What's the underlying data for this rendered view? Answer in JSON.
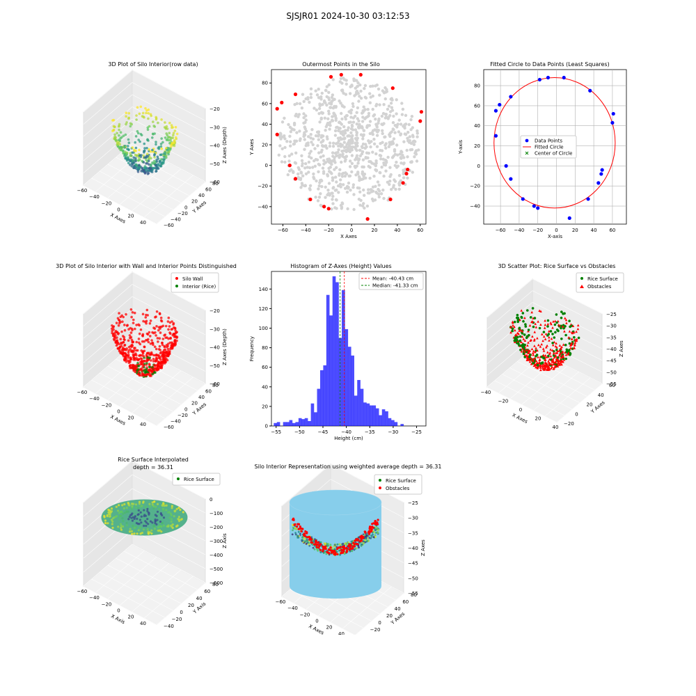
{
  "suptitle": "SJSJR01 2024-10-30 03:12:53",
  "chart_data": [
    {
      "type": "scatter",
      "projection": "3d",
      "title": "3D Plot of Silo Interior(row data)",
      "xlabel": "X Axes",
      "ylabel": "Y Axes",
      "zlabel": "Z Axes (Depth)",
      "xticks": [
        "−60",
        "−40",
        "−20",
        "0",
        "20",
        "40",
        "60"
      ],
      "yticks": [
        "−60",
        "−40",
        "−20",
        "0",
        "20",
        "40",
        "60",
        "80"
      ],
      "zticks": [
        "−20",
        "−30",
        "−40",
        "−50",
        "−60"
      ],
      "colormap": "viridis"
    },
    {
      "type": "scatter",
      "title": "Outermost Points in the Silo",
      "xlabel": "X Axes",
      "ylabel": "Y Axes",
      "xlim": [
        -70,
        65
      ],
      "ylim": [
        -57,
        93
      ],
      "xticks": [
        "−60",
        "−40",
        "−20",
        "0",
        "20",
        "40",
        "60"
      ],
      "yticks": [
        "−40",
        "−20",
        "0",
        "20",
        "40",
        "60",
        "80"
      ],
      "xticks_values": [
        -60,
        -40,
        -20,
        0,
        20,
        40,
        60
      ],
      "yticks_values": [
        -40,
        -20,
        0,
        20,
        40,
        60,
        80
      ],
      "colors": {
        "interior": "#d3d3d3",
        "outer": "#ff0000"
      },
      "outer_points": [
        [
          -65,
          55
        ],
        [
          -61,
          61
        ],
        [
          -49,
          69
        ],
        [
          -18,
          86
        ],
        [
          -9,
          88
        ],
        [
          8,
          88
        ],
        [
          36,
          75
        ],
        [
          61,
          52
        ],
        [
          60,
          43
        ],
        [
          -65,
          30
        ],
        [
          -54,
          0
        ],
        [
          -49,
          -13
        ],
        [
          -36,
          -33
        ],
        [
          -24,
          -40
        ],
        [
          -20,
          -42
        ],
        [
          14,
          -52
        ],
        [
          34,
          -33
        ],
        [
          45,
          -17
        ],
        [
          48,
          -8
        ],
        [
          49,
          -4
        ]
      ]
    },
    {
      "type": "scatter",
      "title": "Fitted Circle to Data Points (Least Squares)",
      "xlabel": "X-axis",
      "ylabel": "Y-axis",
      "xlim": [
        -78,
        75
      ],
      "ylim": [
        -58,
        96
      ],
      "xticks": [
        "−60",
        "−40",
        "−20",
        "0",
        "20",
        "40",
        "60"
      ],
      "yticks": [
        "−40",
        "−20",
        "0",
        "20",
        "40",
        "60",
        "80"
      ],
      "xticks_values": [
        -60,
        -40,
        -20,
        0,
        20,
        40,
        60
      ],
      "yticks_values": [
        -40,
        -20,
        0,
        20,
        40,
        60,
        80
      ],
      "grid": true,
      "legend": [
        "Data Points",
        "Fitted Circle",
        "Center of Circle"
      ],
      "legend_position": "center",
      "colors": {
        "points": "#0000ff",
        "circle": "#ff0000",
        "center": "#008000"
      },
      "points": [
        [
          -65,
          55
        ],
        [
          -61,
          61
        ],
        [
          -49,
          69
        ],
        [
          -18,
          86
        ],
        [
          -9,
          88
        ],
        [
          8,
          88
        ],
        [
          36,
          75
        ],
        [
          61,
          52
        ],
        [
          60,
          43
        ],
        [
          -65,
          30
        ],
        [
          -54,
          0
        ],
        [
          -49,
          -13
        ],
        [
          -36,
          -33
        ],
        [
          -24,
          -40
        ],
        [
          -20,
          -42
        ],
        [
          14,
          -52
        ],
        [
          34,
          -33
        ],
        [
          45,
          -17
        ],
        [
          48,
          -8
        ],
        [
          49,
          -4
        ]
      ],
      "circle": {
        "cx": -2,
        "cy": 23,
        "r": 65
      }
    },
    {
      "type": "scatter",
      "projection": "3d",
      "title": "3D Plot of Silo Interior with Wall and Interior Points Distinguished",
      "xlabel": "X Axes",
      "ylabel": "Y Axes",
      "zlabel": "Z Axes (Depth)",
      "legend": [
        "Silo Wall",
        "Interior (Rice)"
      ],
      "colors": {
        "wall": "#ff0000",
        "interior": "#008000"
      },
      "xticks": [
        "−60",
        "−40",
        "−20",
        "0",
        "20",
        "40",
        "60"
      ],
      "yticks": [
        "−60",
        "−40",
        "−20",
        "0",
        "20",
        "40",
        "60",
        "80"
      ],
      "zticks": [
        "−20",
        "−30",
        "−40",
        "−50",
        "−60"
      ]
    },
    {
      "type": "bar",
      "title": "Histogram of Z-Axes (Height) Values",
      "xlabel": "Height (cm)",
      "ylabel": "Frequency",
      "xlim": [
        -56,
        -23
      ],
      "ylim": [
        0,
        158
      ],
      "xticks": [
        "−55",
        "−50",
        "−45",
        "−40",
        "−35",
        "−30",
        "−25"
      ],
      "yticks": [
        "0",
        "20",
        "40",
        "60",
        "80",
        "100",
        "120",
        "140"
      ],
      "xticks_values": [
        -55,
        -50,
        -45,
        -40,
        -35,
        -30,
        -25
      ],
      "yticks_values": [
        0,
        20,
        40,
        60,
        80,
        100,
        120,
        140
      ],
      "bin_start": -55.5,
      "bin_width": 0.66,
      "values": [
        3,
        4,
        0,
        4,
        4,
        6,
        3,
        4,
        8,
        7,
        8,
        5,
        23,
        14,
        38,
        57,
        62,
        134,
        113,
        153,
        147,
        90,
        139,
        99,
        81,
        72,
        31,
        47,
        38,
        24,
        23,
        21,
        21,
        18,
        11,
        17,
        15,
        8,
        6,
        4,
        0,
        2,
        0,
        0,
        0
      ],
      "bar_color": "#0000ff",
      "lines": [
        {
          "label": "Mean: -40.43 cm",
          "x": -40.43,
          "color": "#ff0000"
        },
        {
          "label": "Median: -41.33 cm",
          "x": -41.33,
          "color": "#008000"
        }
      ],
      "legend_position": "upper right"
    },
    {
      "type": "scatter",
      "projection": "3d",
      "title": "3D Scatter Plot: Rice Surface vs Obstacles",
      "xlabel": "X Axes",
      "ylabel": "Y Axes",
      "zlabel": "Z Axes",
      "legend": [
        "Rice Surface",
        "Obstacles"
      ],
      "colors": {
        "rice": "#008000",
        "obstacles": "#ff0000"
      },
      "xticks": [
        "−40",
        "−20",
        "0",
        "20",
        "40"
      ],
      "yticks": [
        "−20",
        "0",
        "20",
        "40",
        "60"
      ],
      "zticks": [
        "−25",
        "−30",
        "−35",
        "−40",
        "−45",
        "−50",
        "−55"
      ]
    },
    {
      "type": "scatter",
      "projection": "3d",
      "title": "Rice Surface Interpolated",
      "subtitle": "depth = 36.31",
      "xlabel": "X Axis",
      "ylabel": "Y Axis",
      "zlabel": "Z Axis",
      "legend": [
        "Rice Surface"
      ],
      "xticks": [
        "−60",
        "−40",
        "−20",
        "0",
        "20",
        "40",
        "60"
      ],
      "yticks": [
        "−40",
        "−20",
        "0",
        "20",
        "40",
        "60",
        "80"
      ],
      "zticks": [
        "0",
        "−100",
        "−200",
        "−300",
        "−400",
        "−500",
        "−600"
      ]
    },
    {
      "type": "scatter",
      "projection": "3d",
      "title": "Silo Interior Representation using weighted average depth = 36.31",
      "xlabel": "X Axes",
      "ylabel": "Y Axes",
      "zlabel": "Z Axes",
      "legend": [
        "Rice Surface",
        "Obstacles"
      ],
      "colors": {
        "cylinder": "#87ceeb",
        "rice": "#008000",
        "obstacles": "#ff0000"
      },
      "xticks": [
        "−60",
        "−40",
        "−20",
        "0",
        "20",
        "40",
        "60"
      ],
      "yticks": [
        "−40",
        "−20",
        "0",
        "20",
        "40",
        "60",
        "80"
      ],
      "zticks": [
        "−25",
        "−30",
        "−35",
        "−40",
        "−45",
        "−50",
        "−55"
      ]
    }
  ]
}
